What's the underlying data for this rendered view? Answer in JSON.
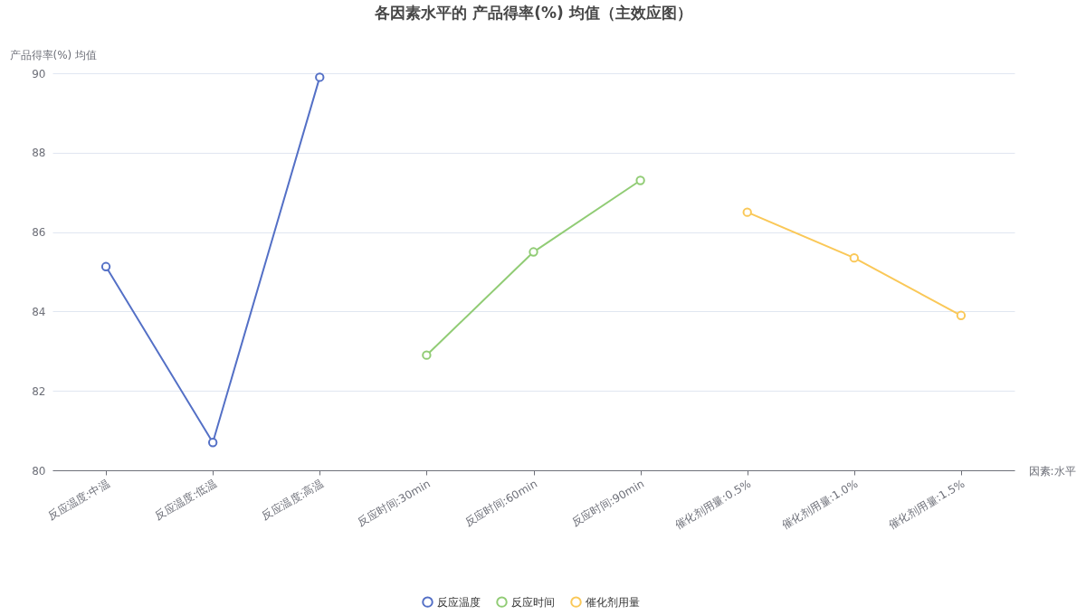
{
  "chart_data": {
    "type": "line",
    "title": "各因素水平的 产品得率(%) 均值（主效应图）",
    "xlabel": "因素:水平",
    "ylabel": "产品得率(%) 均值",
    "categories": [
      "反应温度:中温",
      "反应温度:低温",
      "反应温度:高温",
      "反应时间:30min",
      "反应时间:60min",
      "反应时间:90min",
      "催化剂用量:0.5%",
      "催化剂用量:1.0%",
      "催化剂用量:1.5%"
    ],
    "series": [
      {
        "name": "反应温度",
        "color": "#5470c6",
        "values": [
          85.13,
          80.7,
          89.9,
          null,
          null,
          null,
          null,
          null,
          null
        ]
      },
      {
        "name": "反应时间",
        "color": "#91cc75",
        "values": [
          null,
          null,
          null,
          82.9,
          85.5,
          87.3,
          null,
          null,
          null
        ]
      },
      {
        "name": "催化剂用量",
        "color": "#fac858",
        "values": [
          null,
          null,
          null,
          null,
          null,
          null,
          86.5,
          85.35,
          83.9
        ]
      }
    ],
    "ylim": [
      80,
      90
    ],
    "yticks": [
      80,
      82,
      84,
      86,
      88,
      90
    ],
    "grid": "y",
    "legend": "bottom",
    "marker": "circle",
    "line_style": "solid"
  }
}
